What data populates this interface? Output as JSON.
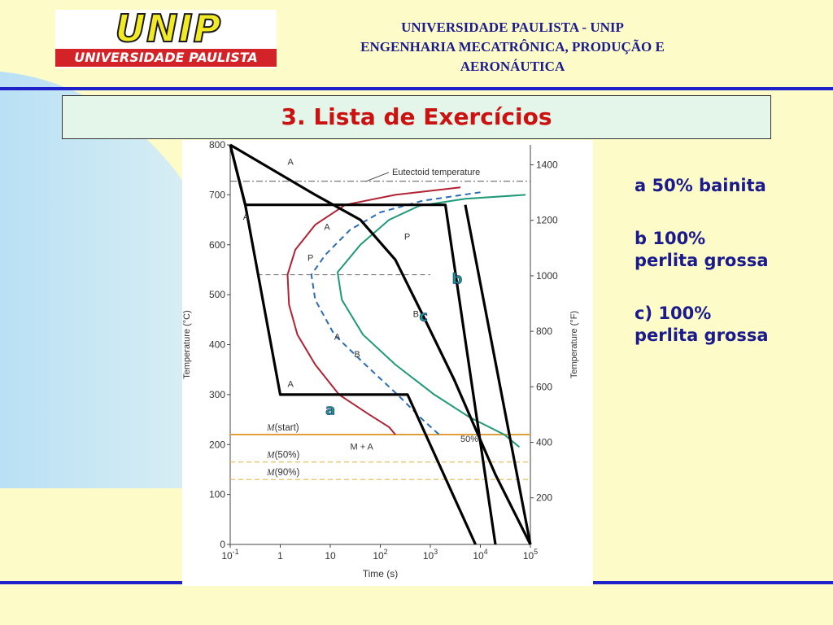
{
  "logo": {
    "mark": "UNIP",
    "band": "UNIVERSIDADE PAULISTA"
  },
  "header": {
    "lines": [
      "UNIVERSIDADE PAULISTA - UNIP",
      "ENGENHARIA MECATRÔNICA, PRODUÇÃO E",
      "AERONÁUTICA"
    ]
  },
  "title": "3. Lista de Exercícios",
  "answers": [
    {
      "lines": [
        "a 50% bainita"
      ]
    },
    {
      "lines": [
        "b 100%",
        "perlita grossa"
      ]
    },
    {
      "lines": [
        "c) 100%",
        "perlita grossa"
      ]
    }
  ],
  "colors": {
    "accent_blue": "#1e22c8",
    "title_red": "#cc1111",
    "text_navy": "#1a1a8c",
    "curve_red": "#b22234",
    "curve_green": "#1f9a78",
    "curve_dashed": "#2a6db5",
    "m_start": "#e0a03a",
    "m_dashed": "#e8c060"
  },
  "chart_data": {
    "type": "line",
    "xlabel": "Time (s)",
    "ylabel_left": "Temperature (°C)",
    "ylabel_right": "Temperature (°F)",
    "x_scale": "log",
    "x_ticks": [
      {
        "value": 0.1,
        "base": "10",
        "exp": "-1"
      },
      {
        "value": 1,
        "base": "1",
        "exp": ""
      },
      {
        "value": 10,
        "base": "10",
        "exp": ""
      },
      {
        "value": 100,
        "base": "10",
        "exp": "2"
      },
      {
        "value": 1000,
        "base": "10",
        "exp": "3"
      },
      {
        "value": 10000,
        "base": "10",
        "exp": "4"
      },
      {
        "value": 100000,
        "base": "10",
        "exp": "5"
      }
    ],
    "xlim": [
      0.1,
      100000
    ],
    "y_left_ticks": [
      0,
      100,
      200,
      300,
      400,
      500,
      600,
      700,
      800
    ],
    "ylim": [
      0,
      800
    ],
    "y_right_ticks": [
      {
        "label": "200",
        "celsius": 93.3
      },
      {
        "label": "400",
        "celsius": 204.4
      },
      {
        "label": "600",
        "celsius": 315.6
      },
      {
        "label": "800",
        "celsius": 426.7
      },
      {
        "label": "1000",
        "celsius": 537.8
      },
      {
        "label": "1200",
        "celsius": 648.9
      },
      {
        "label": "1400",
        "celsius": 760
      }
    ],
    "eutectoid": {
      "label": "Eutectoid temperature",
      "y": 727
    },
    "m_lines": [
      {
        "label": "M",
        "suffix": "(start)",
        "y": 220,
        "style": "solid"
      },
      {
        "label": "M",
        "suffix": "(50%)",
        "y": 165,
        "style": "dashed"
      },
      {
        "label": "M",
        "suffix": "(90%)",
        "y": 130,
        "style": "dashed"
      }
    ],
    "curves": [
      {
        "name": "start",
        "style": "solid",
        "color": "#b22234",
        "points": [
          [
            4000,
            715
          ],
          [
            200,
            700
          ],
          [
            20,
            680
          ],
          [
            5,
            640
          ],
          [
            2,
            590
          ],
          [
            1.4,
            540
          ],
          [
            1.5,
            480
          ],
          [
            2.2,
            420
          ],
          [
            5,
            360
          ],
          [
            15,
            300
          ],
          [
            60,
            260
          ],
          [
            150,
            235
          ],
          [
            200,
            220
          ]
        ]
      },
      {
        "name": "50%",
        "style": "dashed",
        "color": "#2a6db5",
        "points": [
          [
            10000,
            705
          ],
          [
            700,
            688
          ],
          [
            100,
            665
          ],
          [
            25,
            630
          ],
          [
            8,
            580
          ],
          [
            4.2,
            540
          ],
          [
            5,
            490
          ],
          [
            12,
            420
          ],
          [
            50,
            360
          ],
          [
            220,
            300
          ],
          [
            700,
            250
          ],
          [
            1500,
            220
          ]
        ]
      },
      {
        "name": "end",
        "style": "solid",
        "color": "#1f9a78",
        "points": [
          [
            80000,
            700
          ],
          [
            5000,
            692
          ],
          [
            600,
            678
          ],
          [
            150,
            650
          ],
          [
            40,
            600
          ],
          [
            14,
            545
          ],
          [
            17,
            490
          ],
          [
            45,
            420
          ],
          [
            200,
            360
          ],
          [
            1200,
            300
          ],
          [
            6000,
            255
          ],
          [
            30000,
            220
          ],
          [
            60000,
            195
          ]
        ]
      }
    ],
    "paths": [
      {
        "name": "a",
        "points": [
          [
            0.1,
            800
          ],
          [
            0.2,
            680
          ],
          [
            2000,
            680
          ],
          [
            20000,
            0
          ]
        ]
      },
      {
        "name": "b",
        "points": [
          [
            0.1,
            800
          ],
          [
            0.2,
            680
          ],
          [
            1,
            300
          ],
          [
            350,
            300
          ],
          [
            8000,
            0
          ]
        ]
      },
      {
        "name": "c",
        "points": [
          [
            0.1,
            800
          ],
          [
            5,
            700
          ],
          [
            40,
            650
          ],
          [
            200,
            570
          ],
          [
            700,
            460
          ],
          [
            3000,
            330
          ],
          [
            20000,
            140
          ],
          [
            100000,
            0
          ]
        ]
      },
      {
        "name": "c-tail",
        "points": [
          [
            5000,
            680
          ],
          [
            100000,
            0
          ]
        ]
      }
    ],
    "region_labels": [
      {
        "text": "A",
        "x": 1.4,
        "y": 760
      },
      {
        "text": "A",
        "x": 0.18,
        "y": 650
      },
      {
        "text": "A",
        "x": 1.4,
        "y": 315
      },
      {
        "text": "P",
        "x": 3.5,
        "y": 568
      },
      {
        "text": "A",
        "x": 7.5,
        "y": 630
      },
      {
        "text": "A",
        "x": 12,
        "y": 410
      },
      {
        "text": "B",
        "x": 30,
        "y": 375
      },
      {
        "text": "B",
        "x": 450,
        "y": 455
      },
      {
        "text": "P",
        "x": 300,
        "y": 610
      },
      {
        "text": "M + A",
        "x": 25,
        "y": 190
      },
      {
        "text": "50%",
        "x": 4000,
        "y": 205
      }
    ],
    "path_labels": [
      {
        "text": "a",
        "x": 8,
        "y": 260
      },
      {
        "text": "b",
        "x": 2700,
        "y": 522
      },
      {
        "text": "c",
        "x": 600,
        "y": 447
      }
    ],
    "reference_line": {
      "y": 540,
      "x_from": 0.35,
      "x_to": 1000
    }
  }
}
